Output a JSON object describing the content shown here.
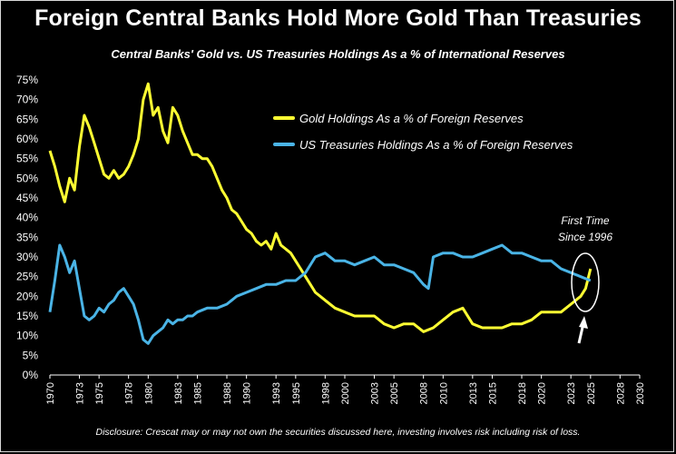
{
  "header": {
    "title": "Foreign Central Banks Hold More Gold Than Treasuries",
    "subtitle": "Central Banks' Gold vs. US Treasuries Holdings As a % of International Reserves"
  },
  "footer": {
    "disclosure": "Disclosure: Crescat may or may not own the securities discussed here, investing involves risk including risk of loss."
  },
  "colors": {
    "gold": "#ffff33",
    "treasuries": "#4ab4e6",
    "background": "#000000",
    "text": "#ffffff"
  },
  "chart_data": {
    "type": "line",
    "title": "Foreign Central Banks Hold More Gold Than Treasuries",
    "xlabel": "",
    "ylabel": "",
    "xlim": [
      1970,
      2030
    ],
    "ylim": [
      0,
      75
    ],
    "y_ticks": [
      "0%",
      "5%",
      "10%",
      "15%",
      "20%",
      "25%",
      "30%",
      "35%",
      "40%",
      "45%",
      "50%",
      "55%",
      "60%",
      "65%",
      "70%",
      "75%"
    ],
    "x_ticks": [
      "1970",
      "1973",
      "1975",
      "1978",
      "1980",
      "1983",
      "1985",
      "1988",
      "1990",
      "1993",
      "1995",
      "1998",
      "2000",
      "2003",
      "2005",
      "2008",
      "2010",
      "2013",
      "2015",
      "2018",
      "2020",
      "2023",
      "2025",
      "2028",
      "2030"
    ],
    "legend_position": "top-right",
    "series": [
      {
        "name": "Gold Holdings As a % of Foreign Reserves",
        "color": "#ffff33",
        "x": [
          1970,
          1970.5,
          1971,
          1971.5,
          1972,
          1972.5,
          1973,
          1973.5,
          1974,
          1974.5,
          1975,
          1975.5,
          1976,
          1976.5,
          1977,
          1977.5,
          1978,
          1978.5,
          1979,
          1979.5,
          1980,
          1980.5,
          1981,
          1981.5,
          1982,
          1982.5,
          1983,
          1983.5,
          1984,
          1984.5,
          1985,
          1985.5,
          1986,
          1986.5,
          1987,
          1987.5,
          1988,
          1988.5,
          1989,
          1989.5,
          1990,
          1990.5,
          1991,
          1991.5,
          1992,
          1992.5,
          1993,
          1993.5,
          1994,
          1994.5,
          1995,
          1995.5,
          1996,
          1996.5,
          1997,
          1997.5,
          1998,
          1999,
          2000,
          2001,
          2002,
          2003,
          2004,
          2005,
          2006,
          2007,
          2008,
          2009,
          2010,
          2011,
          2012,
          2013,
          2014,
          2015,
          2016,
          2017,
          2018,
          2019,
          2020,
          2021,
          2022,
          2023,
          2024,
          2024.5,
          2025
        ],
        "values": [
          57,
          53,
          48,
          44,
          50,
          47,
          58,
          66,
          63,
          59,
          55,
          51,
          50,
          52,
          50,
          51,
          53,
          56,
          60,
          70,
          74,
          66,
          68,
          62,
          59,
          68,
          66,
          62,
          59,
          56,
          56,
          55,
          55,
          53,
          50,
          47,
          45,
          42,
          41,
          39,
          37,
          36,
          34,
          33,
          34,
          32,
          36,
          33,
          32,
          31,
          29,
          27,
          25,
          23,
          21,
          20,
          19,
          17,
          16,
          15,
          15,
          15,
          13,
          12,
          13,
          13,
          11,
          12,
          14,
          16,
          17,
          13,
          12,
          12,
          12,
          13,
          13,
          14,
          16,
          16,
          16,
          18,
          20,
          22,
          27
        ],
        "values_unit": "%"
      },
      {
        "name": "US Treasuries Holdings As a % of Foreign Reserves",
        "color": "#4ab4e6",
        "x": [
          1970,
          1970.5,
          1971,
          1971.5,
          1972,
          1972.5,
          1973,
          1973.5,
          1974,
          1974.5,
          1975,
          1975.5,
          1976,
          1976.5,
          1977,
          1977.5,
          1978,
          1978.5,
          1979,
          1979.5,
          1980,
          1980.5,
          1981,
          1981.5,
          1982,
          1982.5,
          1983,
          1983.5,
          1984,
          1984.5,
          1985,
          1986,
          1987,
          1988,
          1989,
          1990,
          1991,
          1992,
          1993,
          1994,
          1995,
          1996,
          1997,
          1998,
          1999,
          2000,
          2001,
          2002,
          2003,
          2004,
          2005,
          2006,
          2007,
          2008,
          2008.5,
          2009,
          2010,
          2011,
          2012,
          2013,
          2014,
          2015,
          2016,
          2017,
          2018,
          2019,
          2020,
          2021,
          2022,
          2023,
          2024,
          2025
        ],
        "values": [
          16,
          24,
          33,
          30,
          26,
          29,
          22,
          15,
          14,
          15,
          17,
          16,
          18,
          19,
          21,
          22,
          20,
          18,
          14,
          9,
          8,
          10,
          11,
          12,
          14,
          13,
          14,
          14,
          15,
          15,
          16,
          17,
          17,
          18,
          20,
          21,
          22,
          23,
          23,
          24,
          24,
          26,
          30,
          31,
          29,
          29,
          28,
          29,
          30,
          28,
          28,
          27,
          26,
          23,
          22,
          30,
          31,
          31,
          30,
          30,
          31,
          32,
          33,
          31,
          31,
          30,
          29,
          29,
          27,
          26,
          25,
          24
        ],
        "values_unit": "%"
      }
    ],
    "annotations": [
      "First Time",
      "Since 1996"
    ]
  }
}
